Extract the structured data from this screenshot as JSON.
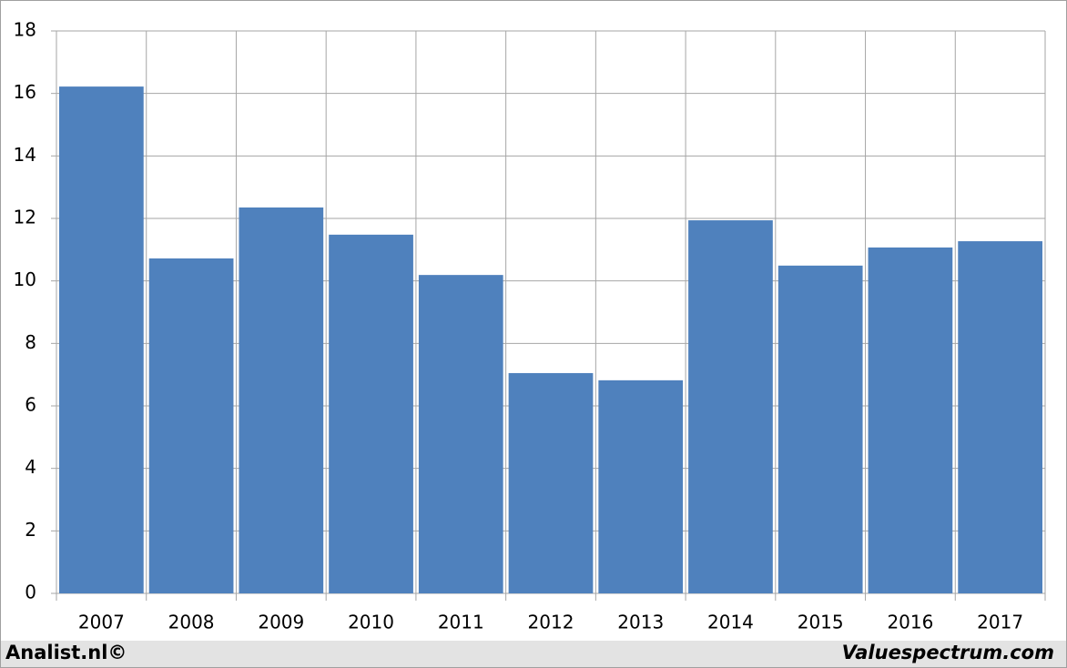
{
  "chart_data": {
    "type": "bar",
    "categories": [
      "2007",
      "2008",
      "2009",
      "2010",
      "2011",
      "2012",
      "2013",
      "2014",
      "2015",
      "2016",
      "2017"
    ],
    "values": [
      16.22,
      10.72,
      12.35,
      11.48,
      10.19,
      7.05,
      6.82,
      11.94,
      10.49,
      11.07,
      11.27
    ],
    "color": "#4f81bd",
    "ylim": [
      0,
      18
    ],
    "yticks": [
      0,
      2,
      4,
      6,
      8,
      10,
      12,
      14,
      16,
      18
    ],
    "grid": true
  },
  "footer": {
    "left": "Analist.nl©",
    "right": "Valuespectrum.com"
  }
}
